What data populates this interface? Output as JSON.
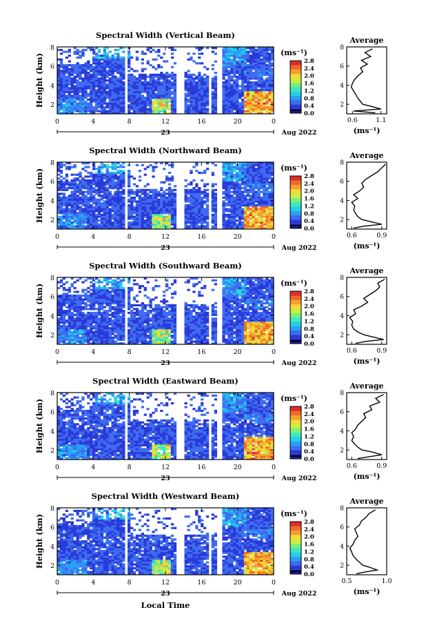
{
  "figure": {
    "time_axis_label": "Local Time",
    "date_label": "Aug 2022",
    "day_label": "23",
    "colorbar_unit": "(ms⁻¹)",
    "colormap": [
      "#1a1aa0",
      "#2a3ad8",
      "#3f6cf0",
      "#2aa0f2",
      "#22d0e8",
      "#3fe8c0",
      "#7af07a",
      "#c8f040",
      "#f6d83a",
      "#f6a030",
      "#f06a2a",
      "#dc2e2a"
    ]
  },
  "chart_data": [
    {
      "type": "heatmap",
      "title": "Spectral Width (Vertical Beam)",
      "ylabel": "Height (km)",
      "xlabel": "",
      "x_ticks": [
        "0",
        "4",
        "8",
        "12",
        "16",
        "20",
        "0"
      ],
      "y_ticks": [
        "2",
        "4",
        "6",
        "8"
      ],
      "xlim": [
        0,
        24
      ],
      "ylim": [
        1,
        8
      ],
      "colorbar": {
        "ticks": [
          "0.0",
          "0.4",
          "0.8",
          "1.2",
          "1.6",
          "2.0",
          "2.4",
          "2.8"
        ],
        "range": [
          0,
          2.8
        ]
      },
      "data_gaps_hours": [
        [
          7.5,
          7.8
        ],
        [
          13.3,
          14.0
        ],
        [
          16.8,
          17.1
        ],
        [
          17.7,
          18.3
        ]
      ],
      "profile": {
        "title": "Average",
        "xlabel": "(ms⁻¹)",
        "x_ticks": [
          "0.6",
          "1.1"
        ],
        "xlim": [
          0.5,
          1.2
        ],
        "y_ticks": [
          "2",
          "4",
          "6",
          "8"
        ],
        "height": [
          1.1,
          1.3,
          1.5,
          1.8,
          2.0,
          2.3,
          2.6,
          3.0,
          3.4,
          3.8,
          4.2,
          4.6,
          5.0,
          5.4,
          5.8,
          6.2,
          6.6,
          7.0,
          7.4,
          7.8
        ],
        "width": [
          1.0,
          0.62,
          1.1,
          0.92,
          0.78,
          0.74,
          0.7,
          0.66,
          0.62,
          0.58,
          0.6,
          0.64,
          0.7,
          0.78,
          0.74,
          0.86,
          0.76,
          0.92,
          0.82,
          0.95
        ]
      }
    },
    {
      "type": "heatmap",
      "title": "Spectral Width (Northward Beam)",
      "ylabel": "Height (km)",
      "xlabel": "",
      "x_ticks": [
        "0",
        "4",
        "8",
        "12",
        "16",
        "20",
        "0"
      ],
      "y_ticks": [
        "2",
        "4",
        "6",
        "8"
      ],
      "xlim": [
        0,
        24
      ],
      "ylim": [
        1,
        8
      ],
      "colorbar": {
        "ticks": [
          "0.0",
          "0.4",
          "0.8",
          "1.2",
          "1.6",
          "2.0",
          "2.4",
          "2.8"
        ],
        "range": [
          0,
          2.8
        ]
      },
      "data_gaps_hours": [
        [
          7.5,
          7.8
        ],
        [
          13.3,
          14.0
        ],
        [
          16.8,
          17.1
        ],
        [
          17.7,
          18.3
        ]
      ],
      "profile": {
        "title": "Average",
        "xlabel": "(ms⁻¹)",
        "x_ticks": [
          "0.6",
          "0.9"
        ],
        "xlim": [
          0.55,
          0.95
        ],
        "y_ticks": [
          "2",
          "4",
          "6",
          "8"
        ],
        "height": [
          1.1,
          1.3,
          1.5,
          1.8,
          2.0,
          2.3,
          2.6,
          3.0,
          3.4,
          3.8,
          4.2,
          4.6,
          5.0,
          5.4,
          5.8,
          6.2,
          6.6,
          7.0,
          7.4,
          7.8
        ],
        "width": [
          0.62,
          0.72,
          0.9,
          0.78,
          0.7,
          0.66,
          0.64,
          0.62,
          0.63,
          0.6,
          0.66,
          0.62,
          0.68,
          0.72,
          0.7,
          0.74,
          0.8,
          0.86,
          0.9,
          0.94
        ]
      }
    },
    {
      "type": "heatmap",
      "title": "Spectral Width (Southward Beam)",
      "ylabel": "Height (km)",
      "xlabel": "",
      "x_ticks": [
        "0",
        "4",
        "8",
        "12",
        "16",
        "20",
        "0"
      ],
      "y_ticks": [
        "2",
        "4",
        "6",
        "8"
      ],
      "xlim": [
        0,
        24
      ],
      "ylim": [
        1,
        8
      ],
      "colorbar": {
        "ticks": [
          "0.0",
          "0.4",
          "0.8",
          "1.2",
          "1.6",
          "2.0",
          "2.4",
          "2.8"
        ],
        "range": [
          0,
          2.8
        ]
      },
      "data_gaps_hours": [
        [
          7.5,
          7.8
        ],
        [
          13.3,
          14.0
        ],
        [
          16.8,
          17.1
        ],
        [
          17.7,
          18.3
        ]
      ],
      "profile": {
        "title": "Average",
        "xlabel": "(ms⁻¹)",
        "x_ticks": [
          "0.6",
          "0.9"
        ],
        "xlim": [
          0.55,
          0.95
        ],
        "y_ticks": [
          "2",
          "4",
          "6",
          "8"
        ],
        "height": [
          1.1,
          1.3,
          1.5,
          1.8,
          2.0,
          2.3,
          2.6,
          3.0,
          3.4,
          3.8,
          4.2,
          4.6,
          5.0,
          5.4,
          5.8,
          6.2,
          6.6,
          7.0,
          7.4,
          7.8
        ],
        "width": [
          0.64,
          0.74,
          0.92,
          0.8,
          0.72,
          0.66,
          0.62,
          0.6,
          0.61,
          0.58,
          0.64,
          0.62,
          0.7,
          0.76,
          0.72,
          0.78,
          0.84,
          0.88,
          0.86,
          0.93
        ]
      }
    },
    {
      "type": "heatmap",
      "title": "Spectral Width (Eastward Beam)",
      "ylabel": "Height (km)",
      "xlabel": "",
      "x_ticks": [
        "0",
        "4",
        "8",
        "12",
        "16",
        "20",
        "0"
      ],
      "y_ticks": [
        "2",
        "4",
        "6",
        "8"
      ],
      "xlim": [
        0,
        24
      ],
      "ylim": [
        1,
        8
      ],
      "colorbar": {
        "ticks": [
          "0.0",
          "0.4",
          "0.8",
          "1.2",
          "1.6",
          "2.0",
          "2.4",
          "2.8"
        ],
        "range": [
          0,
          2.8
        ]
      },
      "data_gaps_hours": [
        [
          7.5,
          7.8
        ],
        [
          13.3,
          14.0
        ],
        [
          16.8,
          17.1
        ],
        [
          17.7,
          18.3
        ]
      ],
      "profile": {
        "title": "Average",
        "xlabel": "(ms⁻¹)",
        "x_ticks": [
          "0.6",
          "0.9"
        ],
        "xlim": [
          0.55,
          0.95
        ],
        "y_ticks": [
          "2",
          "4",
          "6",
          "8"
        ],
        "height": [
          1.1,
          1.3,
          1.5,
          1.8,
          2.0,
          2.3,
          2.6,
          3.0,
          3.4,
          3.8,
          4.2,
          4.6,
          5.0,
          5.4,
          5.8,
          6.2,
          6.6,
          7.0,
          7.4,
          7.8
        ],
        "width": [
          0.66,
          0.78,
          0.9,
          0.8,
          0.7,
          0.66,
          0.63,
          0.6,
          0.62,
          0.6,
          0.64,
          0.66,
          0.7,
          0.74,
          0.72,
          0.8,
          0.78,
          0.88,
          0.84,
          0.92
        ]
      }
    },
    {
      "type": "heatmap",
      "title": "Spectral Width (Westward Beam)",
      "ylabel": "Height (km)",
      "xlabel": "Local Time",
      "x_ticks": [
        "0",
        "4",
        "8",
        "12",
        "16",
        "20",
        "0"
      ],
      "y_ticks": [
        "2",
        "4",
        "6",
        "8"
      ],
      "xlim": [
        0,
        24
      ],
      "ylim": [
        1,
        8
      ],
      "colorbar": {
        "ticks": [
          "0.0",
          "0.4",
          "0.8",
          "1.2",
          "1.6",
          "2.0",
          "2.4",
          "2.8"
        ],
        "range": [
          0,
          2.8
        ]
      },
      "data_gaps_hours": [
        [
          7.5,
          7.8
        ],
        [
          13.3,
          14.0
        ],
        [
          16.8,
          17.1
        ],
        [
          17.7,
          18.3
        ]
      ],
      "profile": {
        "title": "Average",
        "xlabel": "(ms⁻¹)",
        "x_ticks": [
          "0.5",
          "1.0"
        ],
        "xlim": [
          0.5,
          1.0
        ],
        "y_ticks": [
          "2",
          "4",
          "6",
          "8"
        ],
        "height": [
          1.1,
          1.3,
          1.5,
          1.8,
          2.0,
          2.3,
          2.6,
          3.0,
          3.4,
          3.8,
          4.2,
          4.6,
          5.0,
          5.4,
          5.8,
          6.2,
          6.6,
          7.0,
          7.4,
          7.8
        ],
        "width": [
          0.62,
          0.74,
          0.88,
          0.78,
          0.7,
          0.66,
          0.62,
          0.58,
          0.56,
          0.54,
          0.58,
          0.6,
          0.64,
          0.62,
          0.6,
          0.66,
          0.68,
          0.74,
          0.78,
          0.86
        ]
      }
    }
  ]
}
